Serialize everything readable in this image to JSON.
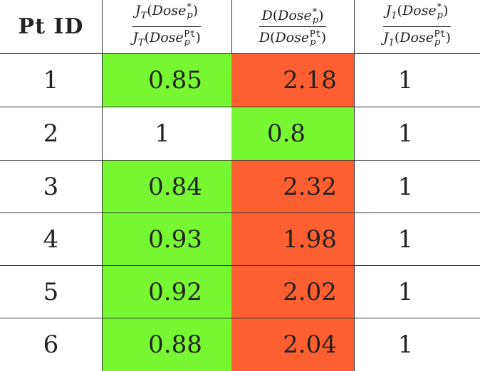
{
  "header": {
    "col0": "Pt ID",
    "col1": {
      "num_prefix": "J",
      "num_sub": "T",
      "den_prefix": "J",
      "den_sub": "T"
    },
    "col2": {
      "num_prefix": "D",
      "den_prefix": "D"
    },
    "col3": {
      "num_prefix": "J",
      "num_sub": "1",
      "den_prefix": "J",
      "den_sub": "1"
    },
    "dose": "Dose",
    "p": "p",
    "star": "*",
    "pt": "Pt",
    "open": "(",
    "close": ")"
  },
  "colors": {
    "green": "#77f833",
    "red": "#fd5f30",
    "white": "#ffffff"
  },
  "rows": [
    {
      "id": "1",
      "jt": "0.85",
      "d": "2.18",
      "j1": "1",
      "jt_color": "green",
      "d_color": "red"
    },
    {
      "id": "2",
      "jt": "1",
      "d": "0.8",
      "j1": "1",
      "jt_color": "white",
      "d_color": "green"
    },
    {
      "id": "3",
      "jt": "0.84",
      "d": "2.32",
      "j1": "1",
      "jt_color": "green",
      "d_color": "red"
    },
    {
      "id": "4",
      "jt": "0.93",
      "d": "1.98",
      "j1": "1",
      "jt_color": "green",
      "d_color": "red"
    },
    {
      "id": "5",
      "jt": "0.92",
      "d": "2.02",
      "j1": "1",
      "jt_color": "green",
      "d_color": "red"
    },
    {
      "id": "6",
      "jt": "0.88",
      "d": "2.04",
      "j1": "1",
      "jt_color": "green",
      "d_color": "red"
    }
  ]
}
